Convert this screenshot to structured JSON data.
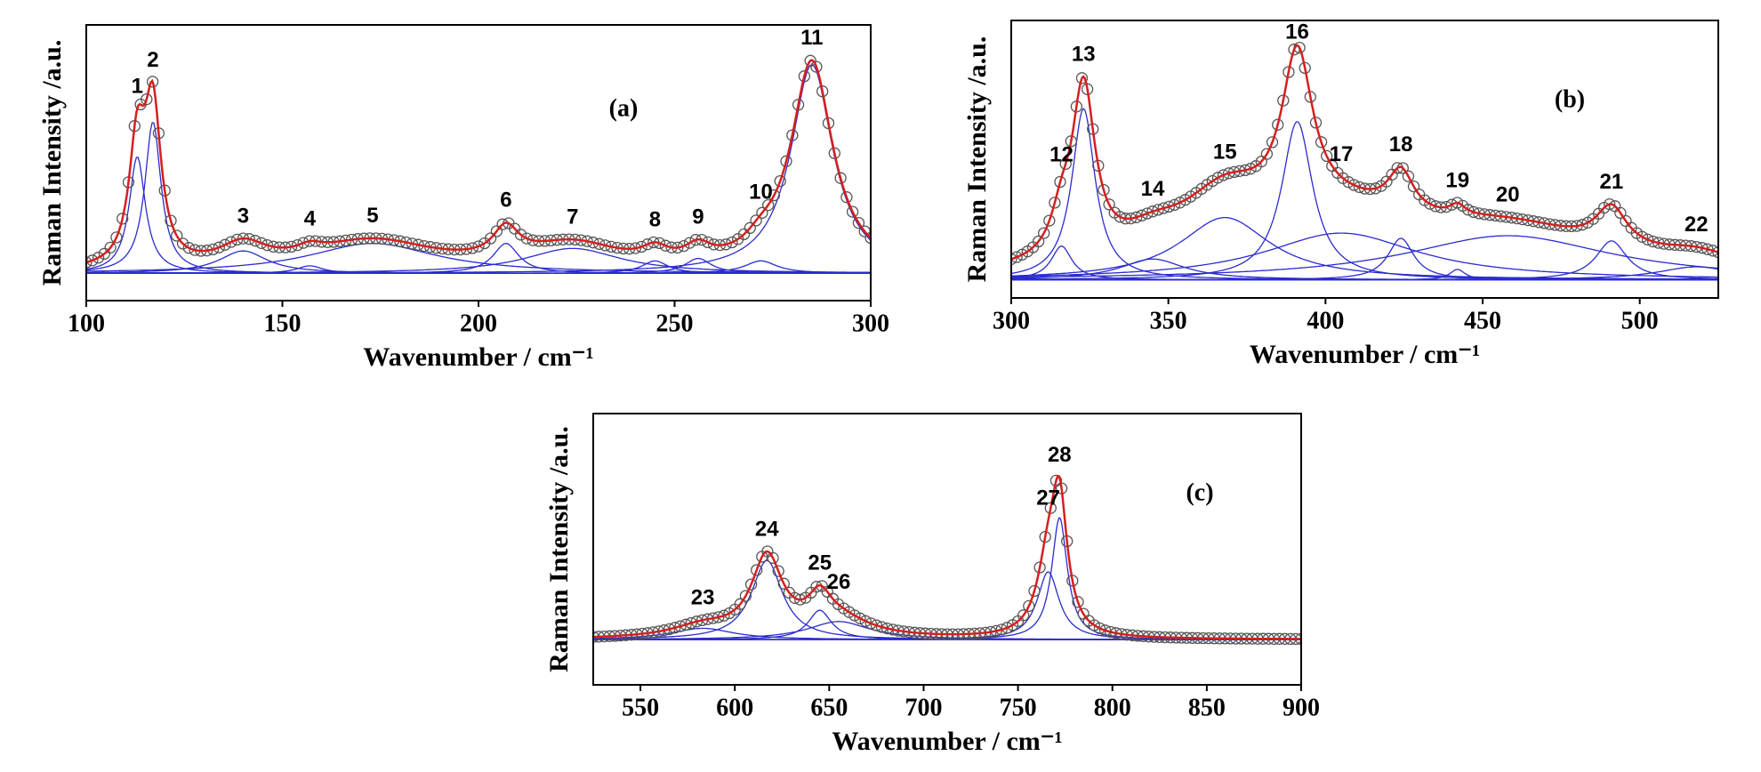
{
  "chart_data": [
    {
      "type": "line",
      "panel_label": "(a)",
      "x_label": "Wavenumber / cm⁻¹",
      "y_label": "Raman Intensity /a.u.",
      "xlim": [
        100,
        300
      ],
      "xticks": [
        100,
        150,
        200,
        250,
        300
      ],
      "ylim": [
        -0.11,
        1
      ],
      "component_color": "#2b2bd0",
      "fit_color": "#d42020",
      "marker_color": "#555555",
      "peaks": [
        {
          "label": "1",
          "x": 113,
          "y": 0.47,
          "width": 5
        },
        {
          "label": "2",
          "x": 117,
          "y": 0.61,
          "width": 5
        },
        {
          "label": "3",
          "x": 140,
          "y": 0.09,
          "width": 15
        },
        {
          "label": "4",
          "x": 157,
          "y": 0.03,
          "width": 8
        },
        {
          "label": "5",
          "x": 173,
          "y": 0.12,
          "width": 40
        },
        {
          "label": "6",
          "x": 207,
          "y": 0.12,
          "width": 8
        },
        {
          "label": "7",
          "x": 224,
          "y": 0.1,
          "width": 30
        },
        {
          "label": "8",
          "x": 245,
          "y": 0.05,
          "width": 8
        },
        {
          "label": "9",
          "x": 256,
          "y": 0.06,
          "width": 8
        },
        {
          "label": "10",
          "x": 272,
          "y": 0.05,
          "width": 10
        },
        {
          "label": "11",
          "x": 285,
          "y": 0.84,
          "width": 13
        }
      ]
    },
    {
      "type": "line",
      "panel_label": "(b)",
      "x_label": "Wavenumber / cm⁻¹",
      "y_label": "Raman Intensity /a.u.",
      "xlim": [
        300,
        525
      ],
      "xticks": [
        300,
        350,
        400,
        450,
        500
      ],
      "ylim": [
        -0.07,
        1
      ],
      "component_color": "#2b2bd0",
      "fit_color": "#d42020",
      "marker_color": "#555555",
      "peaks": [
        {
          "label": "12",
          "x": 316,
          "y": 0.13,
          "width": 8
        },
        {
          "label": "13",
          "x": 323,
          "y": 0.66,
          "width": 9
        },
        {
          "label": "14",
          "x": 345,
          "y": 0.08,
          "width": 25
        },
        {
          "label": "15",
          "x": 368,
          "y": 0.24,
          "width": 35
        },
        {
          "label": "16",
          "x": 391,
          "y": 0.61,
          "width": 12
        },
        {
          "label": "17",
          "x": 405,
          "y": 0.18,
          "width": 60
        },
        {
          "label": "18",
          "x": 424,
          "y": 0.16,
          "width": 10
        },
        {
          "label": "19",
          "x": 442,
          "y": 0.04,
          "width": 6
        },
        {
          "label": "20",
          "x": 458,
          "y": 0.17,
          "width": 80
        },
        {
          "label": "21",
          "x": 491,
          "y": 0.15,
          "width": 12
        },
        {
          "label": "22",
          "x": 518,
          "y": 0.05,
          "width": 30
        }
      ]
    },
    {
      "type": "line",
      "panel_label": "(c)",
      "x_label": "Wavenumber / cm⁻¹",
      "y_label": "Raman Intensity /a.u.",
      "xlim": [
        525,
        900
      ],
      "xticks": [
        550,
        600,
        650,
        700,
        750,
        800,
        850,
        900
      ],
      "ylim": [
        -0.2,
        1
      ],
      "component_color": "#2b2bd0",
      "fit_color": "#d42020",
      "marker_color": "#555555",
      "peaks": [
        {
          "label": "23",
          "x": 583,
          "y": 0.05,
          "width": 40
        },
        {
          "label": "24",
          "x": 617,
          "y": 0.35,
          "width": 20
        },
        {
          "label": "25",
          "x": 645,
          "y": 0.13,
          "width": 15
        },
        {
          "label": "26",
          "x": 655,
          "y": 0.08,
          "width": 40
        },
        {
          "label": "27",
          "x": 766,
          "y": 0.3,
          "width": 14
        },
        {
          "label": "28",
          "x": 772,
          "y": 0.54,
          "width": 10
        }
      ]
    }
  ]
}
